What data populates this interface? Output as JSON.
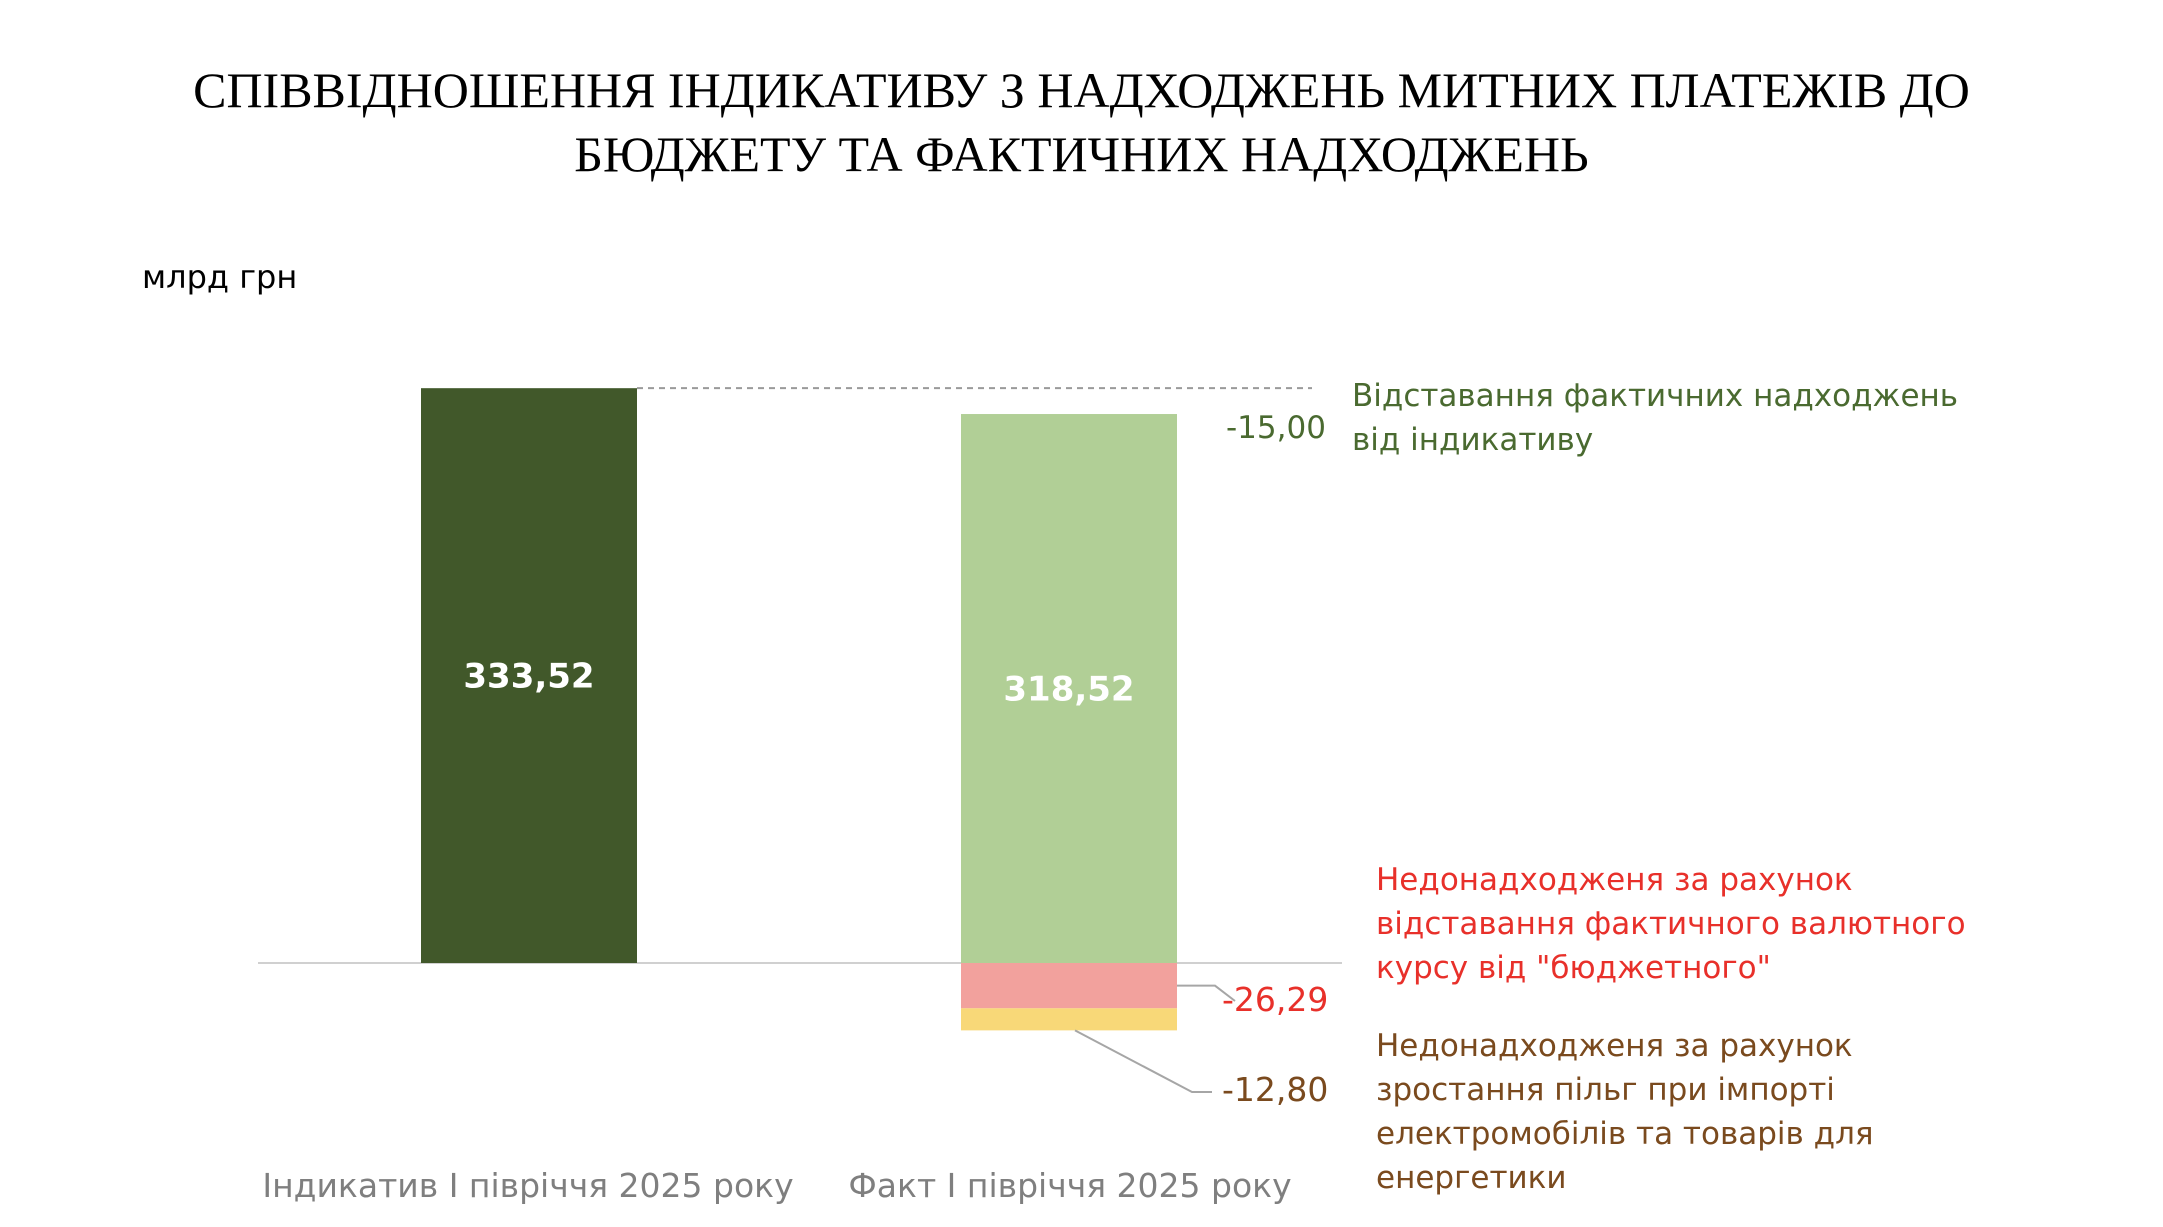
{
  "title": {
    "line1": "СПІВВІДНОШЕННЯ ІНДИКАТИВУ З НАДХОДЖЕНЬ МИТНИХ ПЛАТЕЖІВ ДО",
    "line2": "БЮДЖЕТУ ТА ФАКТИЧНИХ НАДХОДЖЕНЬ"
  },
  "unit_label": "млрд грн",
  "colors": {
    "indicative": "#41582a",
    "fact": "#b1cf96",
    "rate_shortfall": "#f2a19d",
    "benefit_shortfall": "#f8d878",
    "gap_text": "#4a6a30",
    "rate_text": "#e8302a",
    "benefit_text": "#7a4a1e",
    "category_text": "#7f7f7f",
    "axis": "#d0d0d0",
    "leader": "#a6a6a6"
  },
  "annotations": {
    "gap": {
      "line1": "Відставання фактичних надходжень",
      "line2": "від індикативу"
    },
    "rate": {
      "line1": "Недонадходженя за рахунок",
      "line2": "відставання фактичного валютного",
      "line3": "курсу від \"бюджетного\""
    },
    "benefit": {
      "line1": "Недонадходженя за рахунок",
      "line2": "зростання пільг при імпорті",
      "line3": "електромобілів та товарів для",
      "line4": "енергетики"
    }
  },
  "chart_data": {
    "type": "bar",
    "stacked": true,
    "categories": [
      "Індикатив І півріччя 2025 року",
      "Факт І півріччя 2025 року"
    ],
    "ylabel": "млрд грн",
    "series": [
      {
        "key": "indicative",
        "values": [
          333.52,
          null
        ],
        "labels": [
          "333,52",
          ""
        ]
      },
      {
        "key": "fact",
        "values": [
          null,
          318.52
        ],
        "labels": [
          "",
          "318,52"
        ]
      },
      {
        "key": "rate_shortfall",
        "values": [
          null,
          -26.29
        ],
        "labels": [
          "",
          "-26,29"
        ]
      },
      {
        "key": "benefit_shortfall",
        "values": [
          null,
          -12.8
        ],
        "labels": [
          "",
          "-12,80"
        ]
      }
    ],
    "gap": {
      "value": -15.0,
      "label": "-15,00"
    },
    "ylim": [
      -50,
      340
    ],
    "grid": false,
    "legend": "none"
  }
}
